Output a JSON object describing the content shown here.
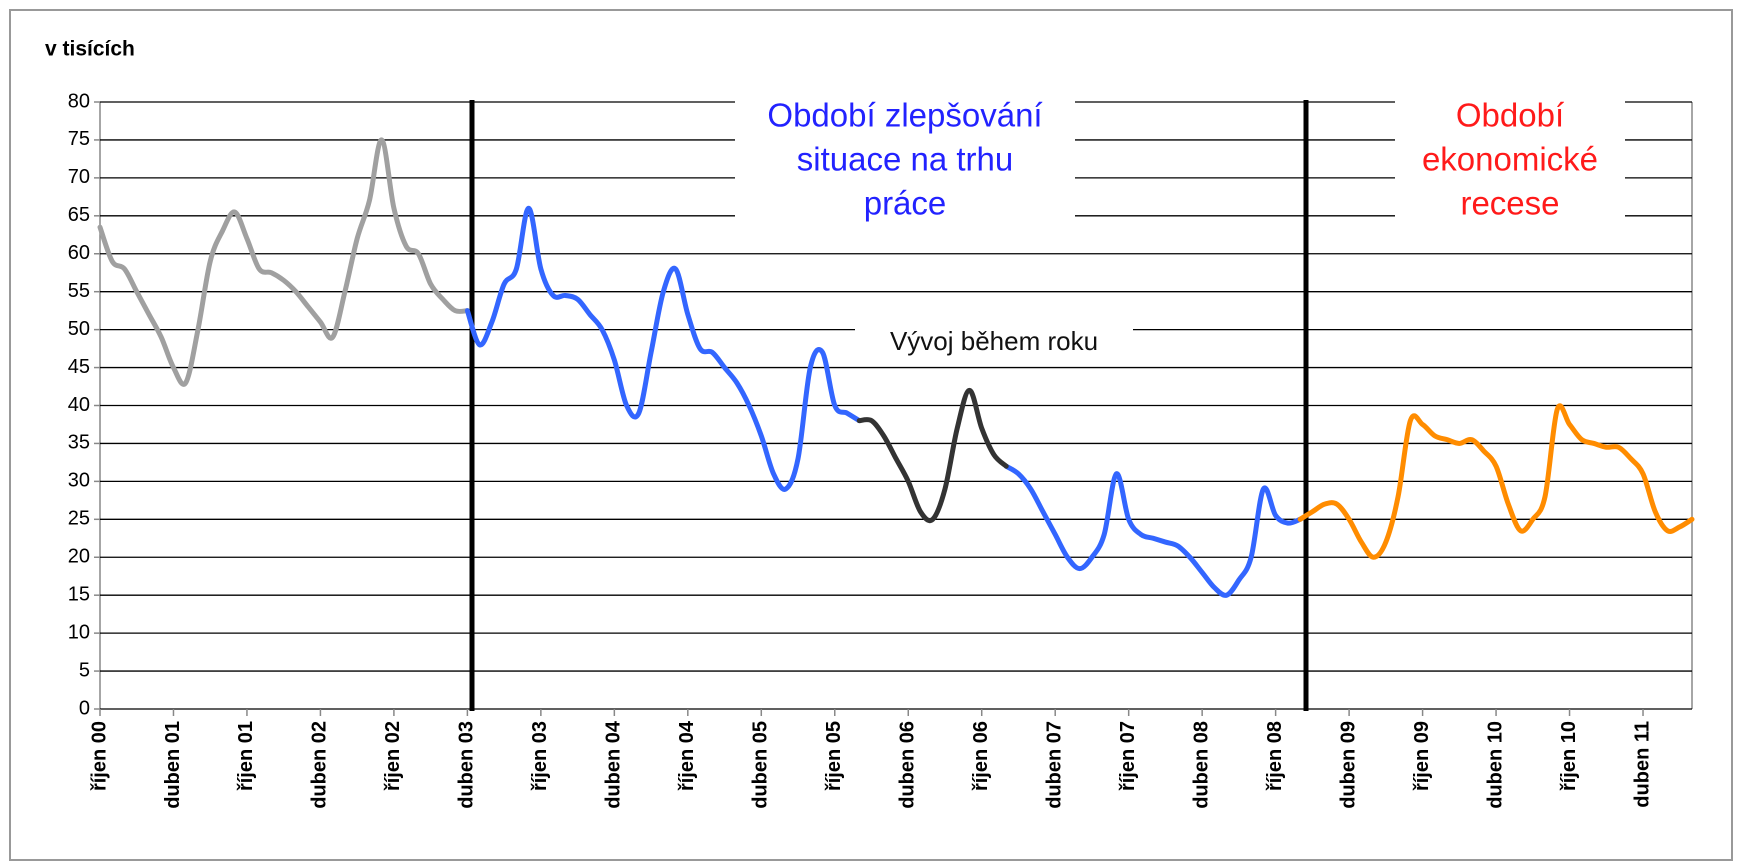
{
  "chart_data": {
    "type": "line",
    "y_label": "v tisících",
    "categories": [
      "říjen 00",
      null,
      null,
      null,
      null,
      null,
      "duben 01",
      null,
      null,
      null,
      null,
      null,
      "říjen 01",
      null,
      null,
      null,
      null,
      null,
      "duben 02",
      null,
      null,
      null,
      null,
      null,
      "říjen 02",
      null,
      null,
      null,
      null,
      null,
      "duben 03",
      null,
      null,
      null,
      null,
      null,
      "říjen 03",
      null,
      null,
      null,
      null,
      null,
      "duben 04",
      null,
      null,
      null,
      null,
      null,
      "říjen 04",
      null,
      null,
      null,
      null,
      null,
      "duben 05",
      null,
      null,
      null,
      null,
      null,
      "říjen 05",
      null,
      null,
      null,
      null,
      null,
      "duben 06",
      null,
      null,
      null,
      null,
      null,
      "říjen 06",
      null,
      null,
      null,
      null,
      null,
      "duben 07",
      null,
      null,
      null,
      null,
      null,
      "říjen 07",
      null,
      null,
      null,
      null,
      null,
      "duben 08",
      null,
      null,
      null,
      null,
      null,
      "říjen 08",
      null,
      null,
      null,
      null,
      null,
      "duben 09",
      null,
      null,
      null,
      null,
      null,
      "říjen 09",
      null,
      null,
      null,
      null,
      null,
      "duben 10",
      null,
      null,
      null,
      null,
      null,
      "říjen 10",
      null,
      null,
      null,
      null,
      null,
      "duben 11",
      null,
      null,
      null,
      null
    ],
    "series": [
      {
        "color": "#a0a0a0",
        "values": [
          63.5,
          59,
          58,
          55,
          52,
          49,
          45,
          43,
          50,
          59,
          63,
          65.5,
          62,
          58,
          57.5,
          56.5,
          55,
          53,
          51,
          49,
          55,
          62,
          67,
          75,
          66,
          61,
          60,
          56,
          54,
          52.5,
          52.5,
          null,
          null,
          null,
          null,
          null,
          null,
          null,
          null,
          null,
          null,
          null,
          null,
          null,
          null,
          null,
          null,
          null,
          null,
          null,
          null,
          null,
          null,
          null,
          null,
          null,
          null,
          null,
          null,
          null,
          null,
          null,
          null,
          null,
          null,
          null,
          null,
          null,
          null,
          null,
          null,
          null,
          null,
          null,
          null,
          null,
          null,
          null,
          null,
          null,
          null,
          null,
          null,
          null,
          null,
          null,
          null,
          null,
          null,
          null,
          null,
          null,
          null,
          null,
          null,
          null,
          null,
          null,
          null,
          null,
          null,
          null,
          null,
          null,
          null,
          null,
          null,
          null,
          null,
          null,
          null,
          null,
          null,
          null,
          null,
          null,
          null,
          null,
          null,
          null,
          null,
          null,
          null,
          null,
          null,
          null,
          null,
          null,
          null,
          null,
          null
        ]
      },
      {
        "color": "#3366ff",
        "values": [
          null,
          null,
          null,
          null,
          null,
          null,
          null,
          null,
          null,
          null,
          null,
          null,
          null,
          null,
          null,
          null,
          null,
          null,
          null,
          null,
          null,
          null,
          null,
          null,
          null,
          null,
          null,
          null,
          null,
          null,
          52.5,
          48,
          51,
          56,
          58,
          66,
          58,
          54.5,
          54.5,
          54,
          52,
          50,
          46,
          40,
          39,
          47,
          55,
          58,
          52,
          47.5,
          47,
          45,
          43,
          40,
          36,
          31,
          29,
          33,
          45,
          47,
          40,
          39,
          38,
          null,
          null,
          null,
          null,
          null,
          null,
          null,
          null,
          null,
          null,
          null,
          32,
          31,
          29,
          26,
          23,
          20,
          18.5,
          20,
          23,
          31,
          25,
          23,
          22.5,
          22,
          21.5,
          20,
          18,
          16,
          15,
          17,
          20,
          29,
          25.5,
          24.5,
          25,
          null,
          null,
          null,
          null,
          null,
          null,
          null,
          null,
          null,
          null,
          null,
          null,
          null,
          null,
          null,
          null,
          null,
          null,
          null,
          null,
          null,
          null,
          null,
          null,
          null,
          null,
          null,
          null,
          null,
          null,
          null,
          null
        ]
      },
      {
        "color": "#333333",
        "values": [
          null,
          null,
          null,
          null,
          null,
          null,
          null,
          null,
          null,
          null,
          null,
          null,
          null,
          null,
          null,
          null,
          null,
          null,
          null,
          null,
          null,
          null,
          null,
          null,
          null,
          null,
          null,
          null,
          null,
          null,
          null,
          null,
          null,
          null,
          null,
          null,
          null,
          null,
          null,
          null,
          null,
          null,
          null,
          null,
          null,
          null,
          null,
          null,
          null,
          null,
          null,
          null,
          null,
          null,
          null,
          null,
          null,
          null,
          null,
          null,
          null,
          null,
          38,
          38,
          36,
          33,
          30,
          26,
          25,
          29,
          37,
          42,
          37,
          33.5,
          32,
          null,
          null,
          null,
          null,
          null,
          null,
          null,
          null,
          null,
          null,
          null,
          null,
          null,
          null,
          null,
          null,
          null,
          null,
          null,
          null,
          null,
          null,
          null,
          null,
          null,
          null,
          null,
          null,
          null,
          null,
          null,
          null,
          null,
          null,
          null,
          null,
          null,
          null,
          null,
          null,
          null,
          null,
          null,
          null,
          null,
          null,
          null,
          null,
          null,
          null,
          null,
          null,
          null,
          null,
          null,
          null
        ]
      },
      {
        "color": "#ff8c00",
        "values": [
          null,
          null,
          null,
          null,
          null,
          null,
          null,
          null,
          null,
          null,
          null,
          null,
          null,
          null,
          null,
          null,
          null,
          null,
          null,
          null,
          null,
          null,
          null,
          null,
          null,
          null,
          null,
          null,
          null,
          null,
          null,
          null,
          null,
          null,
          null,
          null,
          null,
          null,
          null,
          null,
          null,
          null,
          null,
          null,
          null,
          null,
          null,
          null,
          null,
          null,
          null,
          null,
          null,
          null,
          null,
          null,
          null,
          null,
          null,
          null,
          null,
          null,
          null,
          null,
          null,
          null,
          null,
          null,
          null,
          null,
          null,
          null,
          null,
          null,
          null,
          null,
          null,
          null,
          null,
          null,
          null,
          null,
          null,
          null,
          null,
          null,
          null,
          null,
          null,
          null,
          null,
          null,
          null,
          null,
          null,
          null,
          null,
          null,
          25,
          26,
          27,
          27,
          25,
          22,
          20,
          22,
          28,
          38,
          37.5,
          36,
          35.5,
          35,
          35.5,
          34,
          32,
          27,
          23.5,
          25,
          28,
          39.5,
          37.5,
          35.5,
          35,
          34.5,
          34.5,
          33,
          31,
          26,
          23.5,
          24,
          25
        ]
      }
    ],
    "ylim": [
      0,
      80
    ],
    "yticks": [
      0,
      5,
      10,
      15,
      20,
      25,
      30,
      35,
      40,
      45,
      50,
      55,
      60,
      65,
      70,
      75,
      80
    ],
    "grid": true,
    "annotations": [
      {
        "lines": [
          "Období zlepšování",
          "situace na trhu",
          "práce"
        ],
        "color": "#2222ff"
      },
      {
        "lines": [
          "Období",
          "ekonomické",
          "recese"
        ],
        "color": "#ff1a1a"
      },
      {
        "lines": [
          "Vývoj během roku"
        ],
        "color": "#111111"
      }
    ]
  }
}
